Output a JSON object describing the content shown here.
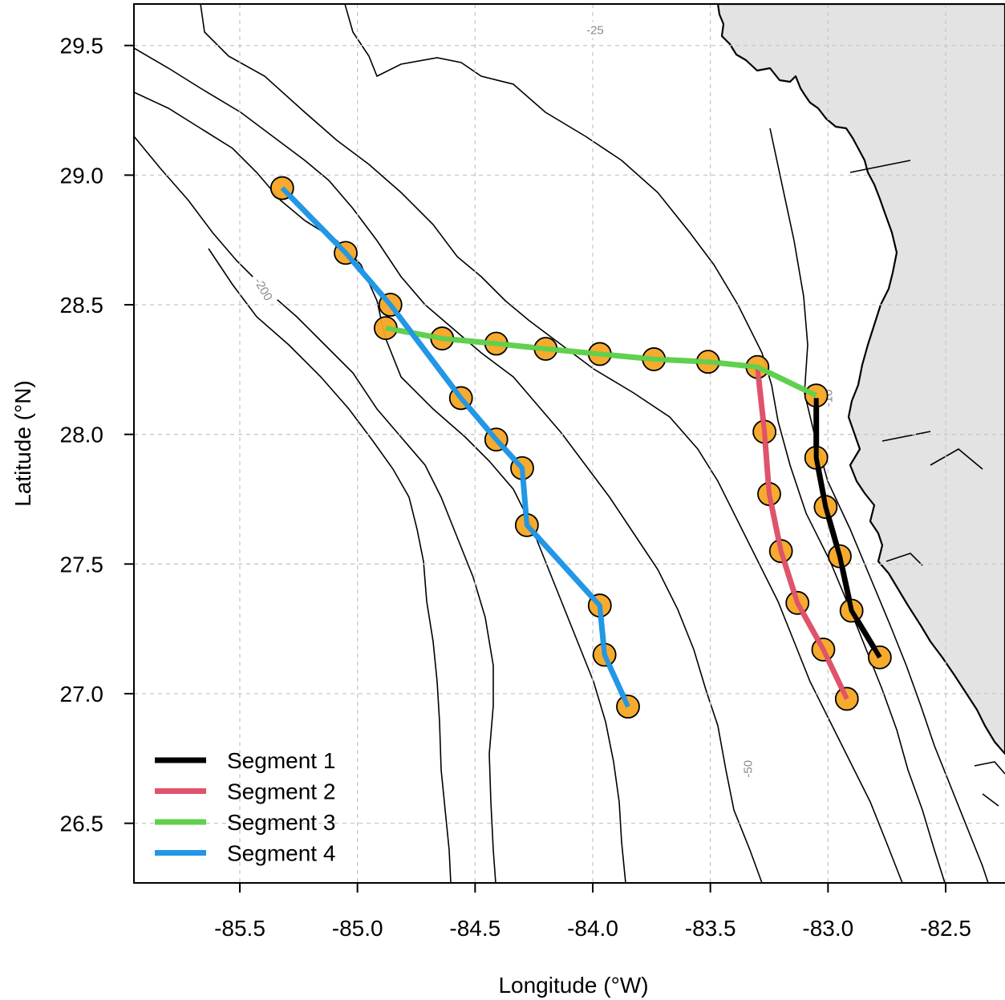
{
  "axes": {
    "xlabel": "Longitude (°W)",
    "ylabel": "Latitude (°N)",
    "xlim": [
      -85.95,
      -82.2
    ],
    "ylim": [
      26.27,
      29.66
    ],
    "xticks": [
      -85.5,
      -85.0,
      -84.5,
      -84.0,
      -83.5,
      -83.0,
      -82.5
    ],
    "xtick_labels": [
      "-85.5",
      "-85.0",
      "-84.5",
      "-84.0",
      "-83.5",
      "-83.0",
      "-82.5"
    ],
    "yticks": [
      26.5,
      27.0,
      27.5,
      28.0,
      28.5,
      29.0,
      29.5
    ],
    "ytick_labels": [
      "26.5",
      "27.0",
      "27.5",
      "28.0",
      "28.5",
      "29.0",
      "29.5"
    ],
    "grid": true
  },
  "colors": {
    "land": "#e3e3e3",
    "station_fill": "#f5a623",
    "grid": "#c8c8c8",
    "contour_label": "#8a8a8a"
  },
  "contour_labels": [
    {
      "text": "-25",
      "lon": -83.99,
      "lat": 29.56,
      "rotate": 0
    },
    {
      "text": "-200",
      "lon": -85.4,
      "lat": 28.56,
      "rotate": 60
    },
    {
      "text": "-50",
      "lon": -83.34,
      "lat": 26.71,
      "rotate": -90
    },
    {
      "text": "-10",
      "lon": -83.0,
      "lat": 28.14,
      "rotate": -90
    }
  ],
  "chart_data": {
    "type": "line",
    "series": [
      {
        "name": "Segment 1",
        "color": "#000000",
        "points": [
          [
            -83.05,
            28.14
          ],
          [
            -83.05,
            27.91
          ],
          [
            -83.01,
            27.72
          ],
          [
            -82.95,
            27.53
          ],
          [
            -82.9,
            27.32
          ],
          [
            -82.78,
            27.14
          ]
        ]
      },
      {
        "name": "Segment 2",
        "color": "#df536b",
        "points": [
          [
            -83.3,
            28.26
          ],
          [
            -83.27,
            28.01
          ],
          [
            -83.25,
            27.77
          ],
          [
            -83.2,
            27.55
          ],
          [
            -83.13,
            27.35
          ],
          [
            -83.02,
            27.17
          ],
          [
            -82.92,
            26.98
          ]
        ]
      },
      {
        "name": "Segment 3",
        "color": "#61d04f",
        "points": [
          [
            -84.88,
            28.41
          ],
          [
            -84.64,
            28.37
          ],
          [
            -84.41,
            28.35
          ],
          [
            -84.2,
            28.33
          ],
          [
            -83.97,
            28.31
          ],
          [
            -83.74,
            28.29
          ],
          [
            -83.51,
            28.28
          ],
          [
            -83.3,
            28.26
          ],
          [
            -83.05,
            28.15
          ]
        ]
      },
      {
        "name": "Segment 4",
        "color": "#2297e6",
        "points": [
          [
            -85.32,
            28.95
          ],
          [
            -85.05,
            28.7
          ],
          [
            -84.86,
            28.5
          ],
          [
            -84.56,
            28.14
          ],
          [
            -84.41,
            27.98
          ],
          [
            -84.3,
            27.87
          ],
          [
            -84.28,
            27.65
          ],
          [
            -83.97,
            27.34
          ],
          [
            -83.95,
            27.15
          ],
          [
            -83.85,
            26.95
          ]
        ]
      }
    ],
    "stations": [
      [
        -85.32,
        28.95
      ],
      [
        -85.05,
        28.7
      ],
      [
        -84.86,
        28.5
      ],
      [
        -84.88,
        28.41
      ],
      [
        -84.64,
        28.37
      ],
      [
        -84.41,
        28.35
      ],
      [
        -84.2,
        28.33
      ],
      [
        -83.97,
        28.31
      ],
      [
        -83.74,
        28.29
      ],
      [
        -83.51,
        28.28
      ],
      [
        -83.3,
        28.26
      ],
      [
        -83.05,
        28.15
      ],
      [
        -84.56,
        28.14
      ],
      [
        -84.41,
        27.98
      ],
      [
        -84.3,
        27.87
      ],
      [
        -84.28,
        27.65
      ],
      [
        -83.97,
        27.34
      ],
      [
        -83.95,
        27.15
      ],
      [
        -83.85,
        26.95
      ],
      [
        -83.27,
        28.01
      ],
      [
        -83.25,
        27.77
      ],
      [
        -83.2,
        27.55
      ],
      [
        -83.13,
        27.35
      ],
      [
        -83.02,
        27.17
      ],
      [
        -82.92,
        26.98
      ],
      [
        -83.05,
        27.91
      ],
      [
        -83.01,
        27.72
      ],
      [
        -82.95,
        27.53
      ],
      [
        -82.9,
        27.32
      ],
      [
        -82.78,
        27.14
      ]
    ],
    "legend_position": "bottom-left"
  }
}
